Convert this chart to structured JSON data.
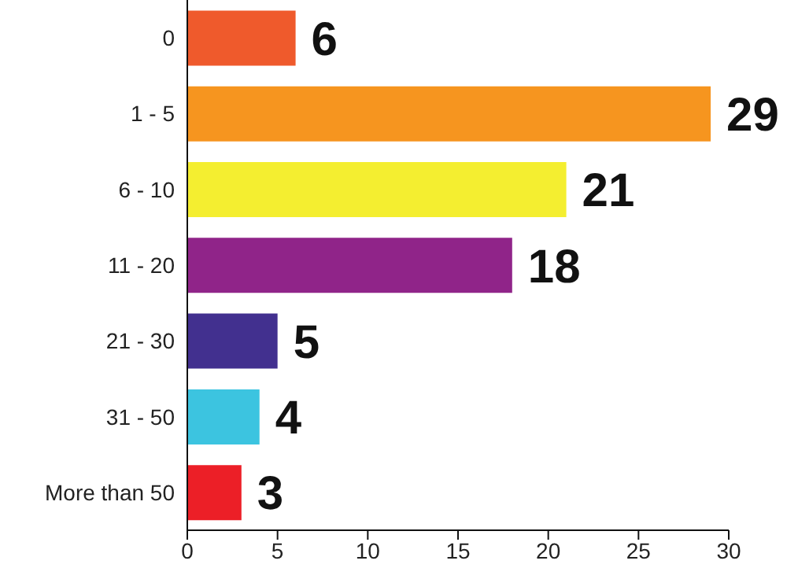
{
  "chart_data": {
    "type": "bar",
    "orientation": "horizontal",
    "categories": [
      "0",
      "1 - 5",
      "6 - 10",
      "11 - 20",
      "21 - 30",
      "31 - 50",
      "More than 50"
    ],
    "values": [
      6,
      29,
      21,
      18,
      5,
      4,
      3
    ],
    "colors": [
      "#ef5a2c",
      "#f6951f",
      "#f4ee30",
      "#902489",
      "#42308f",
      "#3cc4e0",
      "#ec1f27"
    ],
    "xlim": [
      0,
      30
    ],
    "xticks": [
      0,
      5,
      10,
      15,
      20,
      25,
      30
    ],
    "data_labels": true,
    "grid": false
  }
}
